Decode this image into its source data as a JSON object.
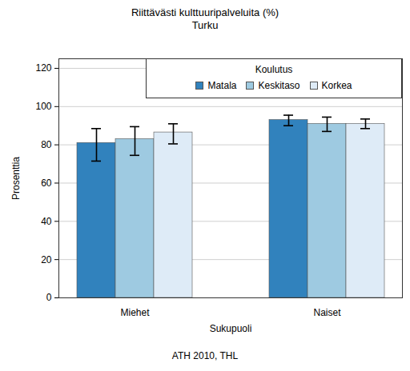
{
  "chart_data": {
    "type": "bar",
    "title": "Riittävästi kulttuuripalveluita (%)",
    "subtitle": "Turku",
    "caption": "ATH 2010, THL",
    "x_label": "Sukupuoli",
    "y_label": "Prosenttia",
    "legend_title": "Koulutus",
    "legend": "top-right",
    "grid": true,
    "categories": [
      "Miehet",
      "Naiset"
    ],
    "series": [
      {
        "name": "Matala",
        "color": "#3182bd",
        "values": [
          81,
          93
        ],
        "error_low": [
          71.5,
          90
        ],
        "error_high": [
          88.5,
          95.5
        ]
      },
      {
        "name": "Keskitaso",
        "color": "#9ecae1",
        "values": [
          83,
          91
        ],
        "error_low": [
          74.5,
          87
        ],
        "error_high": [
          89.5,
          94.5
        ]
      },
      {
        "name": "Korkea",
        "color": "#deebf7",
        "values": [
          86.5,
          91
        ],
        "error_low": [
          80.5,
          88.5
        ],
        "error_high": [
          91,
          93.5
        ]
      }
    ],
    "ylim": [
      0,
      125
    ],
    "yticks": [
      0,
      20,
      40,
      60,
      80,
      100,
      120
    ]
  }
}
